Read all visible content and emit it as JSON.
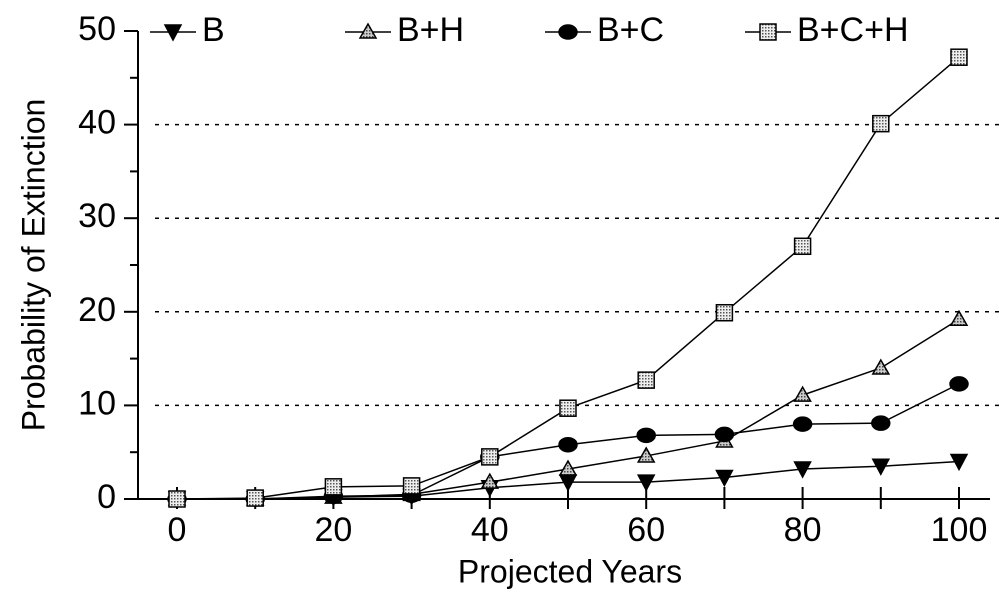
{
  "chart_data": {
    "type": "line",
    "x_label": "Projected Years",
    "y_label": "Probability of Extinction",
    "x": [
      0,
      10,
      20,
      30,
      40,
      50,
      60,
      70,
      80,
      90,
      100
    ],
    "series": [
      {
        "name": "B",
        "color": "#000000",
        "marker": "triangle-down",
        "values": [
          0,
          0,
          0.2,
          0.3,
          1.2,
          1.8,
          1.8,
          2.3,
          3.2,
          3.5,
          4.0
        ]
      },
      {
        "name": "B+H",
        "color": "#000000",
        "marker": "triangle-up",
        "values": [
          0,
          0,
          0.2,
          0.5,
          1.8,
          3.2,
          4.6,
          6.2,
          11.1,
          14.0,
          19.2
        ]
      },
      {
        "name": "B+C",
        "color": "#000000",
        "marker": "circle",
        "values": [
          0,
          0,
          0.3,
          0.4,
          4.5,
          5.8,
          6.8,
          6.9,
          8.0,
          8.1,
          12.3
        ]
      },
      {
        "name": "B+C+H",
        "color": "#000000",
        "marker": "square",
        "values": [
          0,
          0.1,
          1.3,
          1.4,
          4.5,
          9.7,
          12.7,
          19.9,
          27.0,
          40.1,
          47.2
        ]
      }
    ],
    "xlim": [
      0,
      100
    ],
    "xticks": [
      0,
      20,
      40,
      60,
      80,
      100
    ],
    "xticks_minor": [
      10,
      30,
      50,
      70,
      90
    ],
    "ylim": [
      0,
      50
    ],
    "yticks": [
      0,
      10,
      20,
      30,
      40,
      50
    ],
    "yticks_minor": [
      5,
      15,
      25,
      35,
      45
    ],
    "grid_values": [
      10,
      20,
      30,
      40
    ],
    "grid": "dashed",
    "legend": "top"
  }
}
